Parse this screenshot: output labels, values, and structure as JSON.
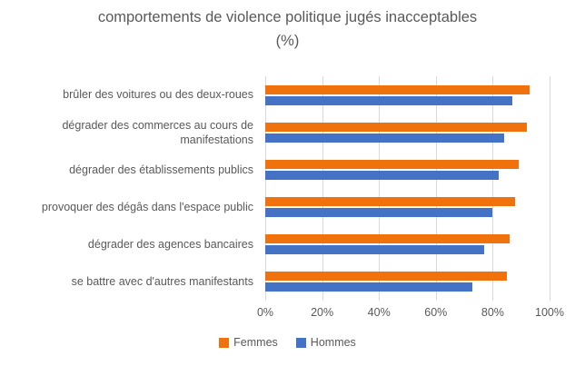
{
  "title": {
    "line1": "comportements de violence politique jugés inacceptables",
    "line2": "(%)"
  },
  "chart_data": {
    "type": "bar",
    "orientation": "horizontal",
    "title": "comportements de violence politique jugés inacceptables (%)",
    "categories": [
      "brûler des voitures ou des deux-roues",
      "dégrader des commerces au cours de manifestations",
      "dégrader des établissements publics",
      "provoquer des dégâs dans l'espace public",
      "dégrader des agences bancaires",
      "se battre avec d'autres manifestants"
    ],
    "series": [
      {
        "name": "Femmes",
        "color": "#f0720c",
        "values": [
          93,
          92,
          89,
          88,
          86,
          85
        ]
      },
      {
        "name": "Hommes",
        "color": "#4472c4",
        "values": [
          87,
          84,
          82,
          80,
          77,
          73
        ]
      }
    ],
    "xlim": [
      0,
      100
    ],
    "x_ticks": [
      {
        "value": 0,
        "label": "0%"
      },
      {
        "value": 20,
        "label": "20%"
      },
      {
        "value": 40,
        "label": "40%"
      },
      {
        "value": 60,
        "label": "60%"
      },
      {
        "value": 80,
        "label": "80%"
      },
      {
        "value": 100,
        "label": "100%"
      }
    ],
    "grid": true,
    "gridline_color": "#d9d9d9",
    "legend_position": "bottom",
    "text_color": "#595959"
  }
}
